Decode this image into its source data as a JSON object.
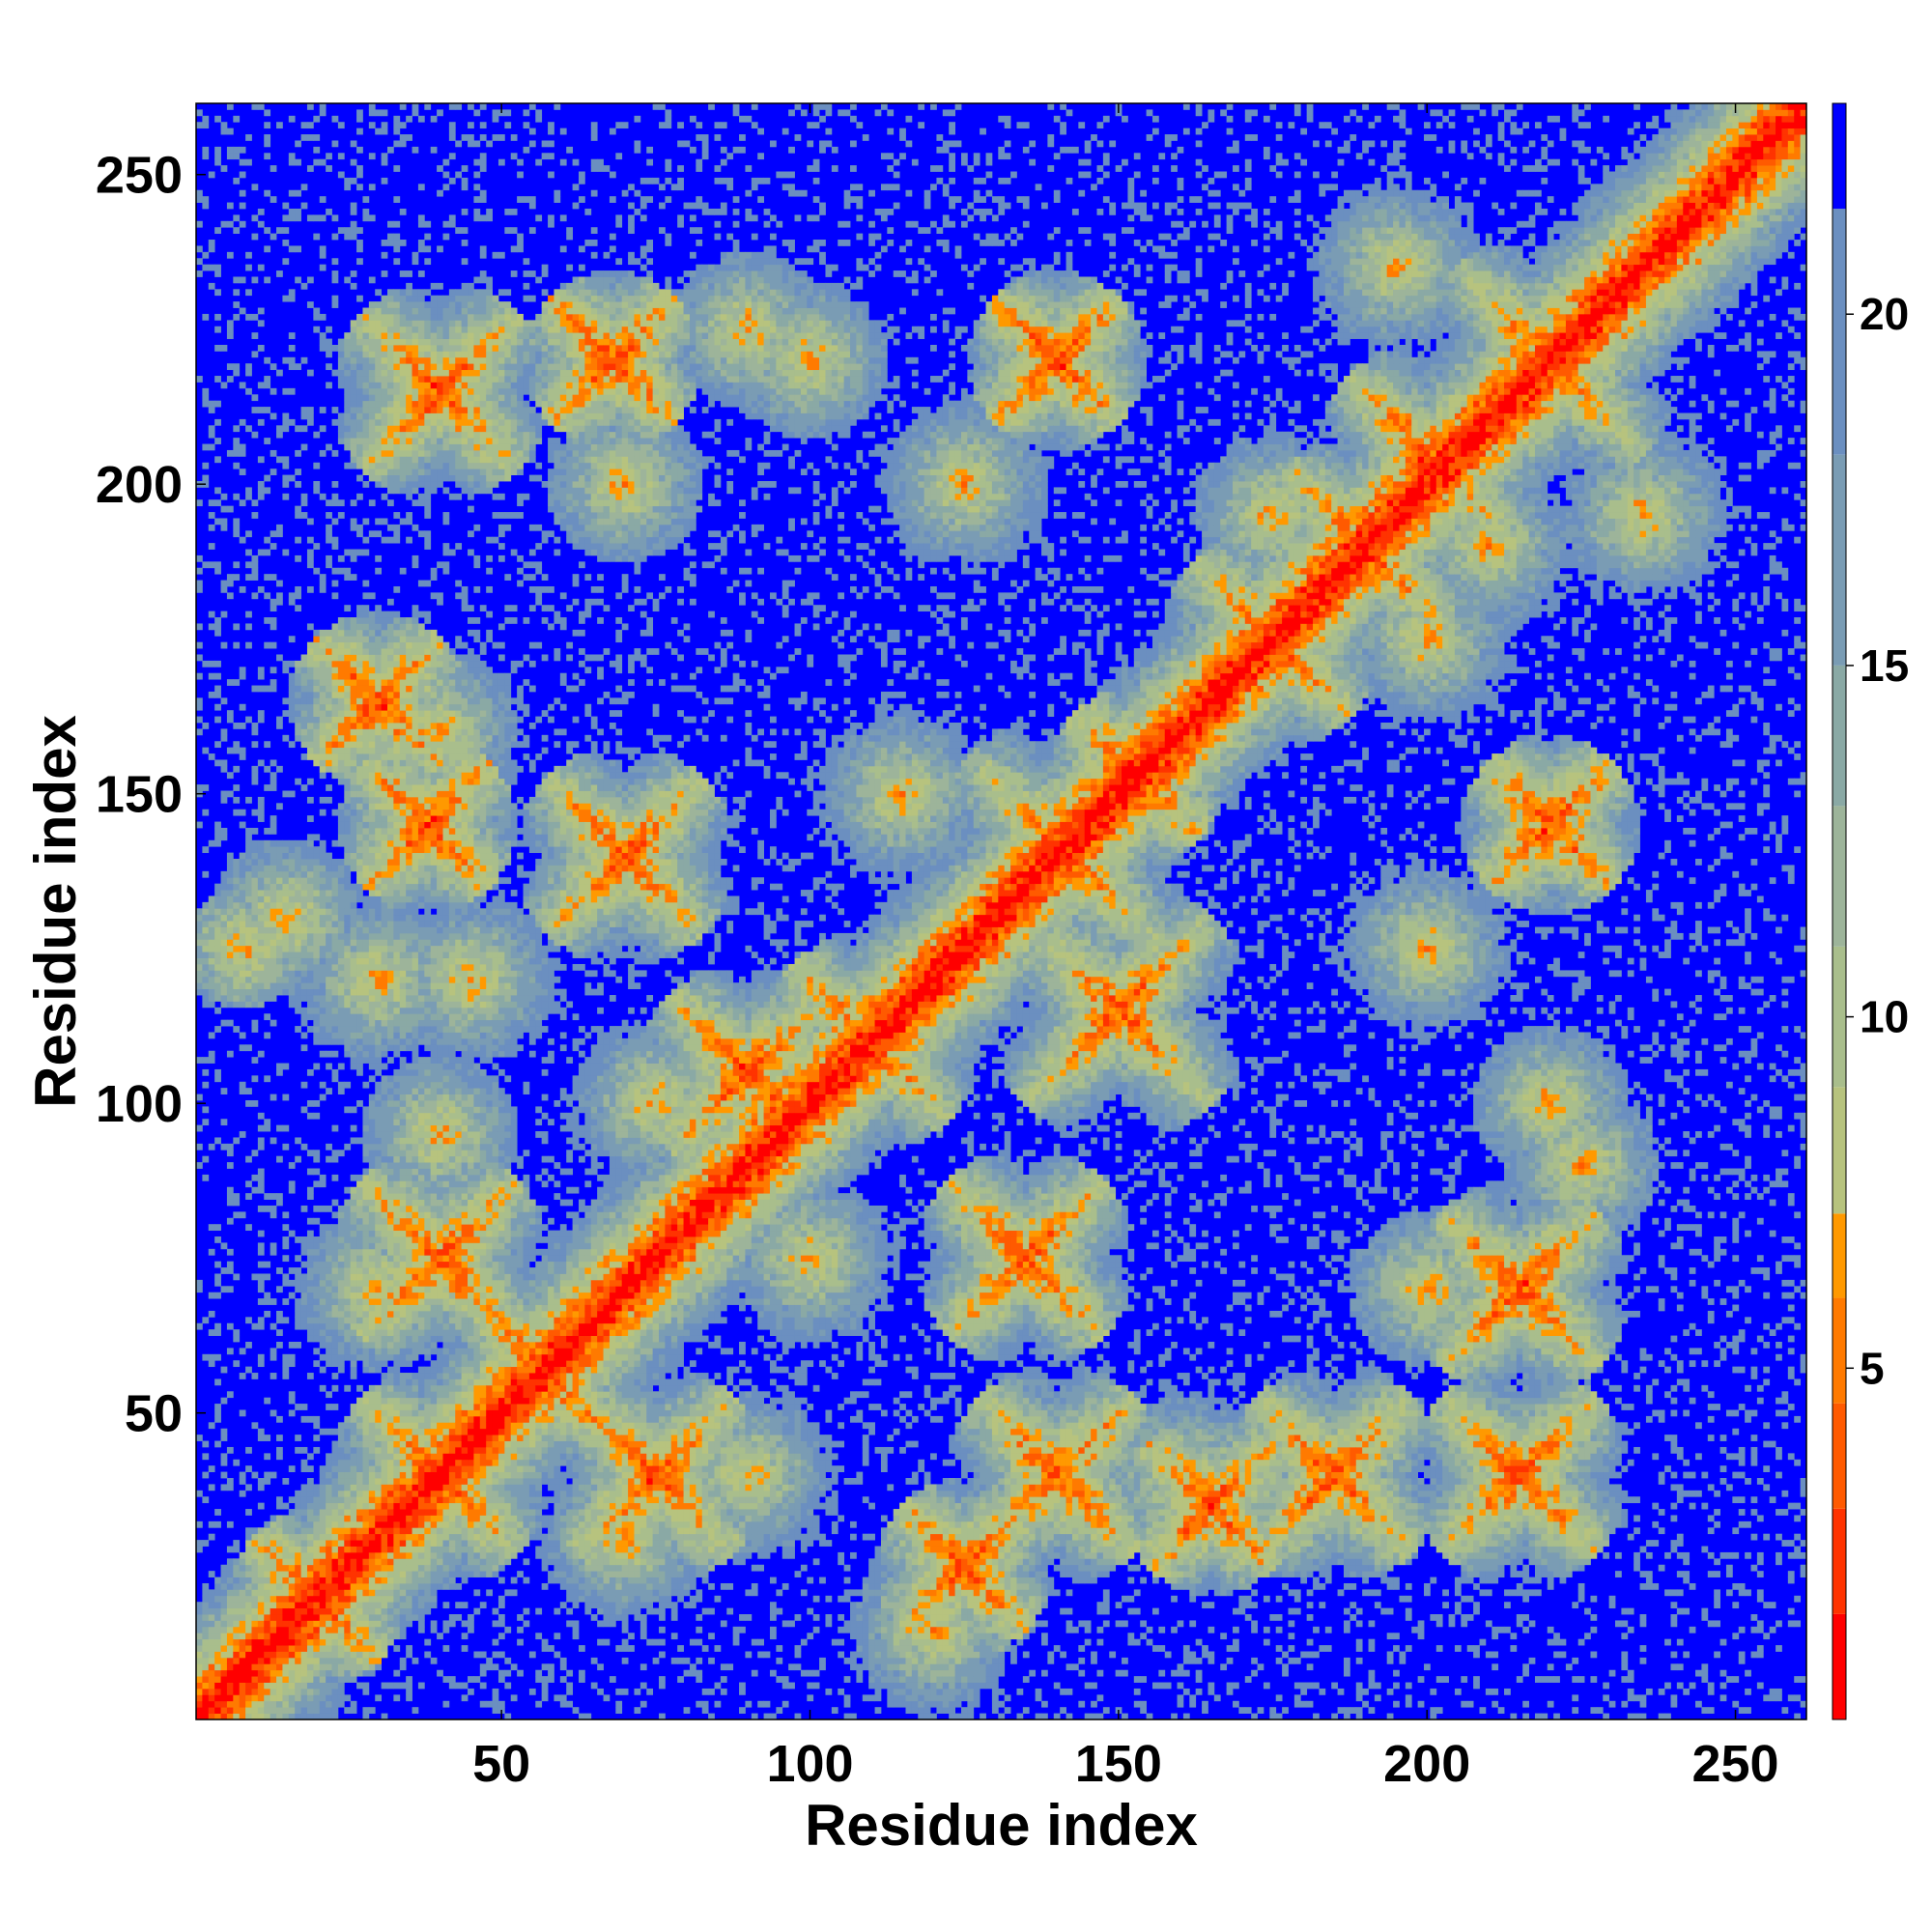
{
  "chart_data": {
    "type": "heatmap",
    "title": "",
    "xlabel": "Residue index",
    "ylabel": "Residue index",
    "n_residues": 261,
    "xlim": [
      1,
      261
    ],
    "ylim": [
      1,
      261
    ],
    "x_ticks": [
      50,
      100,
      150,
      200,
      250
    ],
    "y_ticks": [
      50,
      100,
      150,
      200,
      250
    ],
    "colorbar": {
      "ticks": [
        5,
        10,
        15,
        20
      ],
      "range": [
        0,
        23
      ],
      "bands": [
        {
          "from": 0,
          "to": 1.5,
          "color": "#ff0000"
        },
        {
          "from": 1.5,
          "to": 3,
          "color": "#ff3300"
        },
        {
          "from": 3,
          "to": 4.5,
          "color": "#ff5a00"
        },
        {
          "from": 4.5,
          "to": 6,
          "color": "#ff7a00"
        },
        {
          "from": 6,
          "to": 7.2,
          "color": "#ff9900"
        },
        {
          "from": 7.2,
          "to": 9,
          "color": "#b7c37e"
        },
        {
          "from": 9,
          "to": 11,
          "color": "#a9be8c"
        },
        {
          "from": 11,
          "to": 13,
          "color": "#9db49a"
        },
        {
          "from": 13,
          "to": 15,
          "color": "#8aa9a5"
        },
        {
          "from": 15,
          "to": 18,
          "color": "#7a9cb4"
        },
        {
          "from": 18,
          "to": 21.5,
          "color": "#6b8fc0"
        },
        {
          "from": 21.5,
          "to": 23,
          "color": "#0000ff"
        }
      ]
    },
    "background_color": "#0000ff",
    "contact_features": [
      {
        "type": "diagonal",
        "i": [
          1,
          261
        ]
      },
      {
        "type": "cross",
        "i": 40,
        "j": 40,
        "w": 10
      },
      {
        "type": "cross",
        "i": 57,
        "j": 57,
        "w": 8
      },
      {
        "type": "cross",
        "i": 141,
        "j": 141,
        "w": 12
      },
      {
        "type": "cross",
        "i": 153,
        "j": 153,
        "w": 8
      },
      {
        "type": "cross",
        "i": 220,
        "j": 220,
        "w": 12
      },
      {
        "type": "cross",
        "i": 38,
        "j": 145,
        "w": 8
      },
      {
        "type": "cross",
        "i": 70,
        "j": 140,
        "w": 10
      },
      {
        "type": "cross",
        "i": 40,
        "j": 215,
        "w": 10
      },
      {
        "type": "cross",
        "i": 68,
        "j": 220,
        "w": 8
      },
      {
        "type": "cross",
        "i": 140,
        "j": 220,
        "w": 8
      },
      {
        "type": "cross",
        "i": 220,
        "j": 145,
        "w": 8
      },
      {
        "type": "cross",
        "i": 215,
        "j": 40,
        "w": 10
      },
      {
        "type": "cross",
        "i": 140,
        "j": 40,
        "w": 10
      },
      {
        "type": "cross",
        "i": 150,
        "j": 115,
        "w": 12
      },
      {
        "type": "cross",
        "i": 135,
        "j": 75,
        "w": 10
      },
      {
        "type": "cross",
        "i": 30,
        "j": 165,
        "w": 8
      },
      {
        "type": "cross",
        "i": 215,
        "j": 70,
        "w": 10
      },
      {
        "type": "cross",
        "i": 165,
        "j": 35,
        "w": 8
      },
      {
        "type": "cross",
        "i": 125,
        "j": 25,
        "w": 8
      },
      {
        "type": "cross",
        "i": 185,
        "j": 40,
        "w": 10
      },
      {
        "type": "cross",
        "i": 175,
        "j": 175,
        "w": 10
      },
      {
        "type": "cross",
        "i": 190,
        "j": 190,
        "w": 10
      },
      {
        "type": "cross",
        "i": 200,
        "j": 205,
        "w": 10
      },
      {
        "type": "cross",
        "i": 110,
        "j": 110,
        "w": 10
      },
      {
        "type": "cross",
        "i": 90,
        "j": 105,
        "w": 10
      },
      {
        "type": "cross",
        "i": 75,
        "j": 40,
        "w": 10
      },
      {
        "type": "cross",
        "i": 40,
        "j": 75,
        "w": 10
      },
      {
        "type": "cross",
        "i": 20,
        "j": 20,
        "w": 8
      },
      {
        "type": "blob",
        "i": 195,
        "j": 235,
        "w": 14
      },
      {
        "type": "blob",
        "i": 235,
        "j": 195,
        "w": 14
      },
      {
        "type": "blob",
        "i": 175,
        "j": 195,
        "w": 14
      },
      {
        "type": "blob",
        "i": 200,
        "j": 175,
        "w": 12
      },
      {
        "type": "blob",
        "i": 30,
        "j": 70,
        "w": 10
      },
      {
        "type": "blob",
        "i": 45,
        "j": 120,
        "w": 10
      },
      {
        "type": "blob",
        "i": 30,
        "j": 120,
        "w": 10
      },
      {
        "type": "blob",
        "i": 15,
        "j": 130,
        "w": 8
      },
      {
        "type": "blob",
        "i": 40,
        "j": 95,
        "w": 8
      },
      {
        "type": "blob",
        "i": 90,
        "j": 40,
        "w": 10
      },
      {
        "type": "blob",
        "i": 120,
        "j": 15,
        "w": 10
      },
      {
        "type": "blob",
        "i": 70,
        "j": 30,
        "w": 10
      },
      {
        "type": "blob",
        "i": 115,
        "j": 150,
        "w": 12
      },
      {
        "type": "blob",
        "i": 125,
        "j": 200,
        "w": 10
      },
      {
        "type": "blob",
        "i": 200,
        "j": 125,
        "w": 10
      },
      {
        "type": "blob",
        "i": 160,
        "j": 40,
        "w": 10
      },
      {
        "type": "blob",
        "i": 40,
        "j": 160,
        "w": 10
      },
      {
        "type": "blob",
        "i": 210,
        "j": 190,
        "w": 10
      },
      {
        "type": "blob",
        "i": 90,
        "j": 225,
        "w": 8
      },
      {
        "type": "blob",
        "i": 225,
        "j": 90,
        "w": 8
      },
      {
        "type": "blob",
        "i": 70,
        "j": 200,
        "w": 8
      },
      {
        "type": "blob",
        "i": 200,
        "j": 70,
        "w": 8
      },
      {
        "type": "blob",
        "i": 100,
        "j": 75,
        "w": 10
      },
      {
        "type": "blob",
        "i": 75,
        "j": 100,
        "w": 10
      },
      {
        "type": "blob",
        "i": 8,
        "j": 125,
        "w": 6
      },
      {
        "type": "blob",
        "i": 220,
        "j": 100,
        "w": 8
      },
      {
        "type": "blob",
        "i": 100,
        "j": 220,
        "w": 8
      }
    ]
  }
}
